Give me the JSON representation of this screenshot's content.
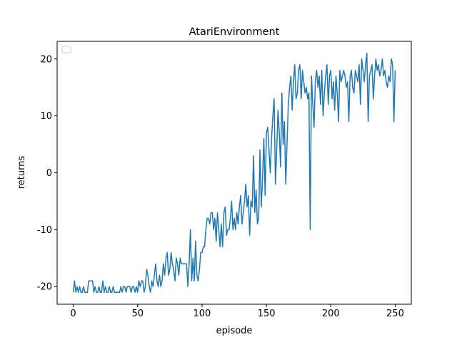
{
  "chart_data": {
    "type": "line",
    "title": "AtariEnvironment",
    "x_label": "episode",
    "y_label": "returns",
    "x": [
      0,
      1,
      2,
      3,
      4,
      5,
      6,
      7,
      8,
      9,
      10,
      11,
      12,
      13,
      14,
      15,
      16,
      17,
      18,
      19,
      20,
      21,
      22,
      23,
      24,
      25,
      26,
      27,
      28,
      29,
      30,
      31,
      32,
      33,
      34,
      35,
      36,
      37,
      38,
      39,
      40,
      41,
      42,
      43,
      44,
      45,
      46,
      47,
      48,
      49,
      50,
      51,
      52,
      53,
      54,
      55,
      56,
      57,
      58,
      59,
      60,
      61,
      62,
      63,
      64,
      65,
      66,
      67,
      68,
      69,
      70,
      71,
      72,
      73,
      74,
      75,
      76,
      77,
      78,
      79,
      80,
      81,
      82,
      83,
      84,
      85,
      86,
      87,
      88,
      89,
      90,
      91,
      92,
      93,
      94,
      95,
      96,
      97,
      98,
      99,
      100,
      101,
      102,
      103,
      104,
      105,
      106,
      107,
      108,
      109,
      110,
      111,
      112,
      113,
      114,
      115,
      116,
      117,
      118,
      119,
      120,
      121,
      122,
      123,
      124,
      125,
      126,
      127,
      128,
      129,
      130,
      131,
      132,
      133,
      134,
      135,
      136,
      137,
      138,
      139,
      140,
      141,
      142,
      143,
      144,
      145,
      146,
      147,
      148,
      149,
      150,
      151,
      152,
      153,
      154,
      155,
      156,
      157,
      158,
      159,
      160,
      161,
      162,
      163,
      164,
      165,
      166,
      167,
      168,
      169,
      170,
      171,
      172,
      173,
      174,
      175,
      176,
      177,
      178,
      179,
      180,
      181,
      182,
      183,
      184,
      185,
      186,
      187,
      188,
      189,
      190,
      191,
      192,
      193,
      194,
      195,
      196,
      197,
      198,
      199,
      200,
      201,
      202,
      203,
      204,
      205,
      206,
      207,
      208,
      209,
      210,
      211,
      212,
      213,
      214,
      215,
      216,
      217,
      218,
      219,
      220,
      221,
      222,
      223,
      224,
      225,
      226,
      227,
      228,
      229,
      230,
      231,
      232,
      233,
      234,
      235,
      236,
      237,
      238,
      239,
      240,
      241,
      242,
      243,
      244,
      245,
      246,
      247,
      248,
      249,
      250
    ],
    "series": [
      {
        "color": "#1f77b4",
        "values": [
          -21,
          -19,
          -21,
          -20,
          -21,
          -20,
          -21,
          -21,
          -20,
          -21,
          -21,
          -21,
          -19,
          -19,
          -19,
          -19,
          -21,
          -20,
          -21,
          -21,
          -20,
          -21,
          -21,
          -19,
          -21,
          -20,
          -21,
          -21,
          -20,
          -21,
          -21,
          -20,
          -21,
          -21,
          -21,
          -21,
          -21,
          -20,
          -21,
          -20,
          -20,
          -21,
          -20,
          -20,
          -20,
          -21,
          -20,
          -20,
          -21,
          -20,
          -21,
          -19,
          -20,
          -19,
          -19,
          -21,
          -20,
          -17,
          -18,
          -20,
          -21,
          -19,
          -20,
          -18,
          -16,
          -19,
          -20,
          -18,
          -20,
          -19,
          -16,
          -18,
          -15,
          -14,
          -18,
          -17,
          -14,
          -16,
          -17,
          -19,
          -15,
          -16,
          -18,
          -15,
          -16,
          -16,
          -16,
          -16,
          -16,
          -20,
          -16,
          -10,
          -19,
          -15,
          -19,
          -12,
          -18,
          -19,
          -17,
          -14,
          -14,
          -13,
          -13,
          -10,
          -8,
          -8,
          -9,
          -7,
          -7,
          -10,
          -8,
          -12,
          -7,
          -10,
          -13,
          -9,
          -13,
          -7,
          -6,
          -11,
          -10,
          -10,
          -8,
          -5,
          -10,
          -8,
          -10,
          -7,
          -9,
          -6,
          -4,
          -9,
          -7,
          -5,
          -2,
          -6,
          -4,
          -11,
          -5,
          -6,
          3,
          -7,
          -3,
          -9,
          -8,
          4,
          -6,
          -1,
          6,
          -4,
          7,
          8,
          4,
          0,
          6,
          10,
          13,
          -2,
          4,
          11,
          7,
          1,
          14,
          5,
          9,
          -2,
          5,
          12,
          15,
          17,
          11,
          16,
          19,
          13,
          14,
          18,
          19,
          13,
          18,
          16,
          14,
          15,
          13,
          14,
          -10,
          17,
          12,
          8,
          16,
          18,
          15,
          17,
          12,
          18,
          10,
          14,
          17,
          19,
          12,
          17,
          18,
          13,
          16,
          11,
          17,
          14,
          9,
          18,
          16,
          17,
          18,
          17,
          15,
          16,
          9,
          17,
          18,
          15,
          14,
          18,
          17,
          16,
          19,
          12,
          20,
          18,
          16,
          19,
          21,
          9,
          17,
          18,
          19,
          13,
          17,
          20,
          18,
          19,
          17,
          18,
          20,
          17,
          18,
          16,
          15,
          17,
          16,
          20,
          19,
          9,
          18
        ]
      }
    ],
    "xlim": [
      -12.5,
      262.5
    ],
    "ylim": [
      -23.1,
      23.1
    ],
    "xticks": [
      0,
      50,
      100,
      150,
      200,
      250
    ],
    "yticks": [
      -20,
      -10,
      0,
      10,
      20
    ]
  }
}
